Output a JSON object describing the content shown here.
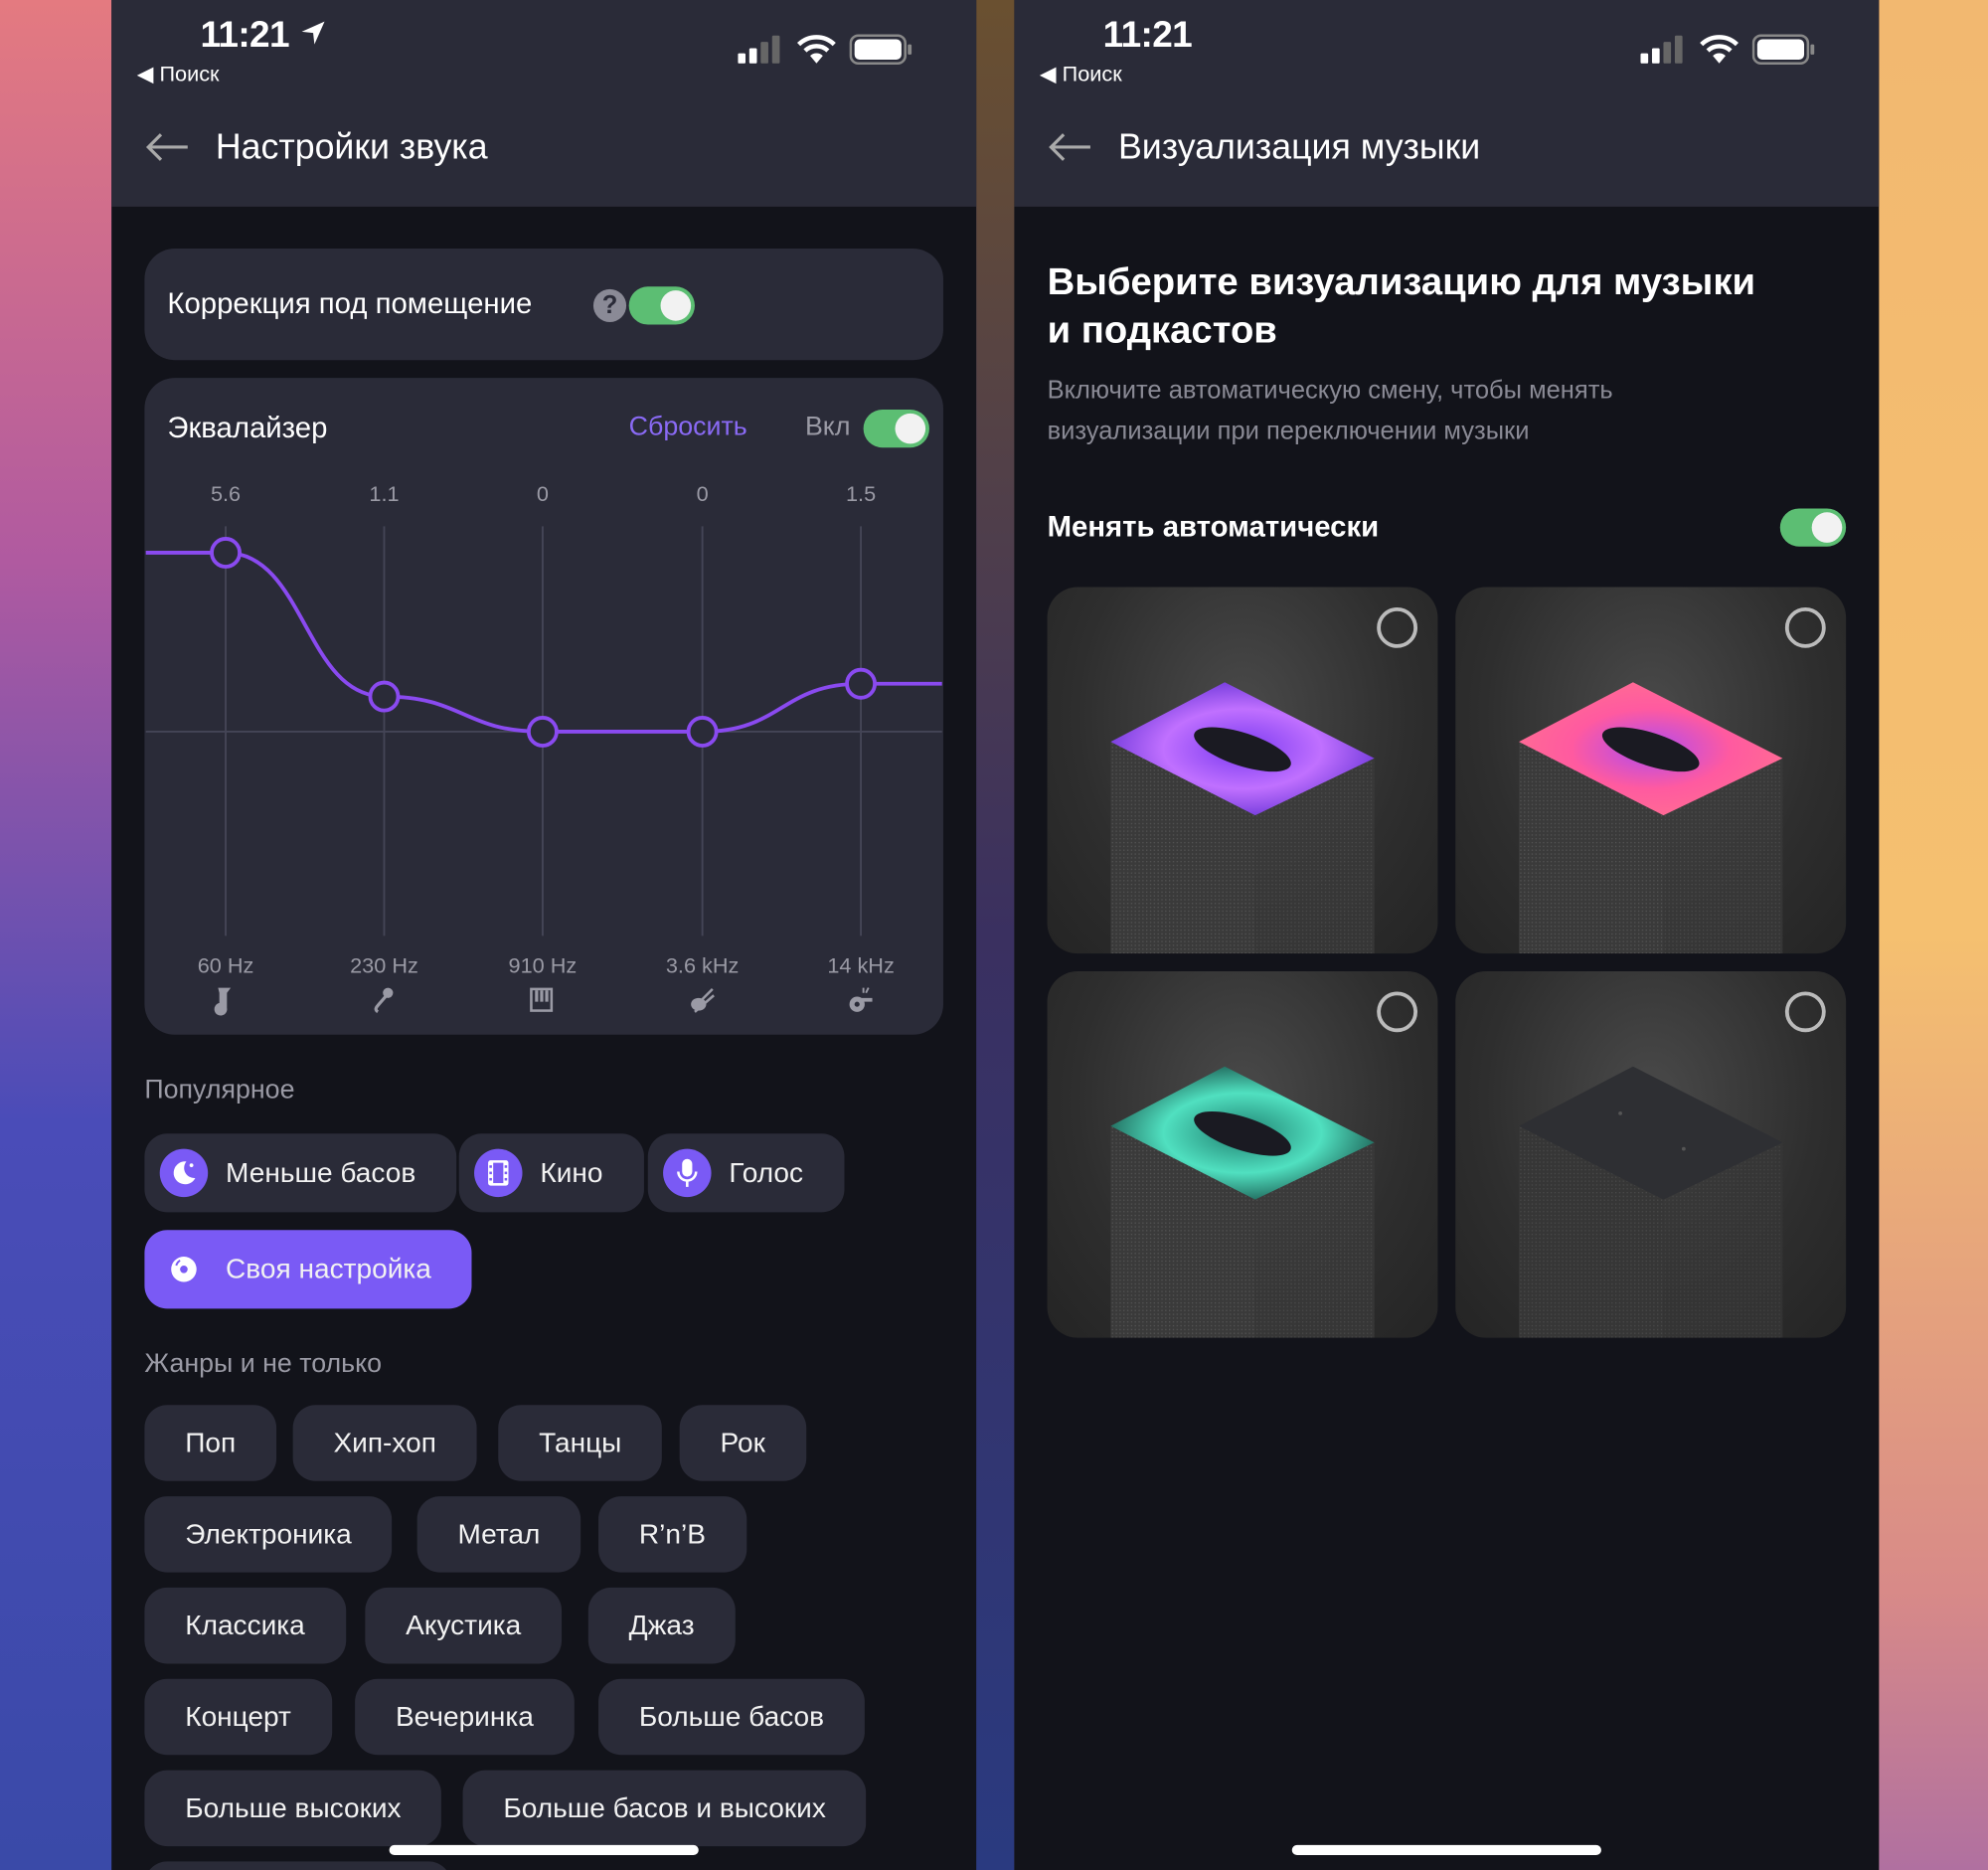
{
  "status_bar": {
    "time": "11:21",
    "back_app": "Поиск"
  },
  "left": {
    "header": {
      "title": "Настройки звука"
    },
    "room_correction": {
      "label": "Коррекция под помещение",
      "enabled": true
    },
    "equalizer": {
      "title": "Эквалайзер",
      "reset_label": "Сбросить",
      "on_label": "Вкл",
      "enabled": true
    },
    "chart_data": {
      "type": "line",
      "x": [
        "60 Hz",
        "230 Hz",
        "910 Hz",
        "3.6 kHz",
        "14 kHz"
      ],
      "values": [
        5.6,
        1.1,
        0,
        0,
        1.5
      ],
      "value_labels": [
        "5.6",
        "1.1",
        "0",
        "0",
        "1.5"
      ],
      "band_icons": [
        "tuba-icon",
        "microphone-icon",
        "piano-icon",
        "guitar-icon",
        "whistle-icon"
      ],
      "color": "#8a4af0"
    },
    "popular": {
      "title": "Популярное",
      "items": [
        {
          "label": "Меньше басов",
          "icon": "moon-icon"
        },
        {
          "label": "Кино",
          "icon": "film-icon"
        },
        {
          "label": "Голос",
          "icon": "microphone-icon"
        },
        {
          "label": "Своя настройка",
          "icon": "disc-icon",
          "selected": true
        }
      ]
    },
    "genres": {
      "title": "Жанры и не только",
      "items": [
        "Поп",
        "Хип-хоп",
        "Танцы",
        "Рок",
        "Электроника",
        "Метал",
        "R’n’B",
        "Классика",
        "Акустика",
        "Джаз",
        "Концерт",
        "Вечеринка",
        "Больше басов",
        "Больше высоких",
        "Больше басов и высоких"
      ]
    }
  },
  "right": {
    "header": {
      "title": "Визуализация музыки"
    },
    "heading_line1": "Выберите визуализацию для музыки",
    "heading_line2": "и подкастов",
    "desc_line1": "Включите автоматическую смену, чтобы менять",
    "desc_line2": "визуализации при переключении музыки",
    "auto": {
      "label": "Менять автоматически",
      "enabled": true
    },
    "options": [
      {
        "glow": "purple",
        "selected": false
      },
      {
        "glow": "pink-purple",
        "selected": false
      },
      {
        "glow": "teal",
        "selected": false
      },
      {
        "glow": "none",
        "selected": false
      }
    ]
  },
  "colors": {
    "accent": "#7a5af5",
    "toggle_on": "#5cbe73",
    "card": "#2a2b38",
    "bg": "#12131a"
  }
}
